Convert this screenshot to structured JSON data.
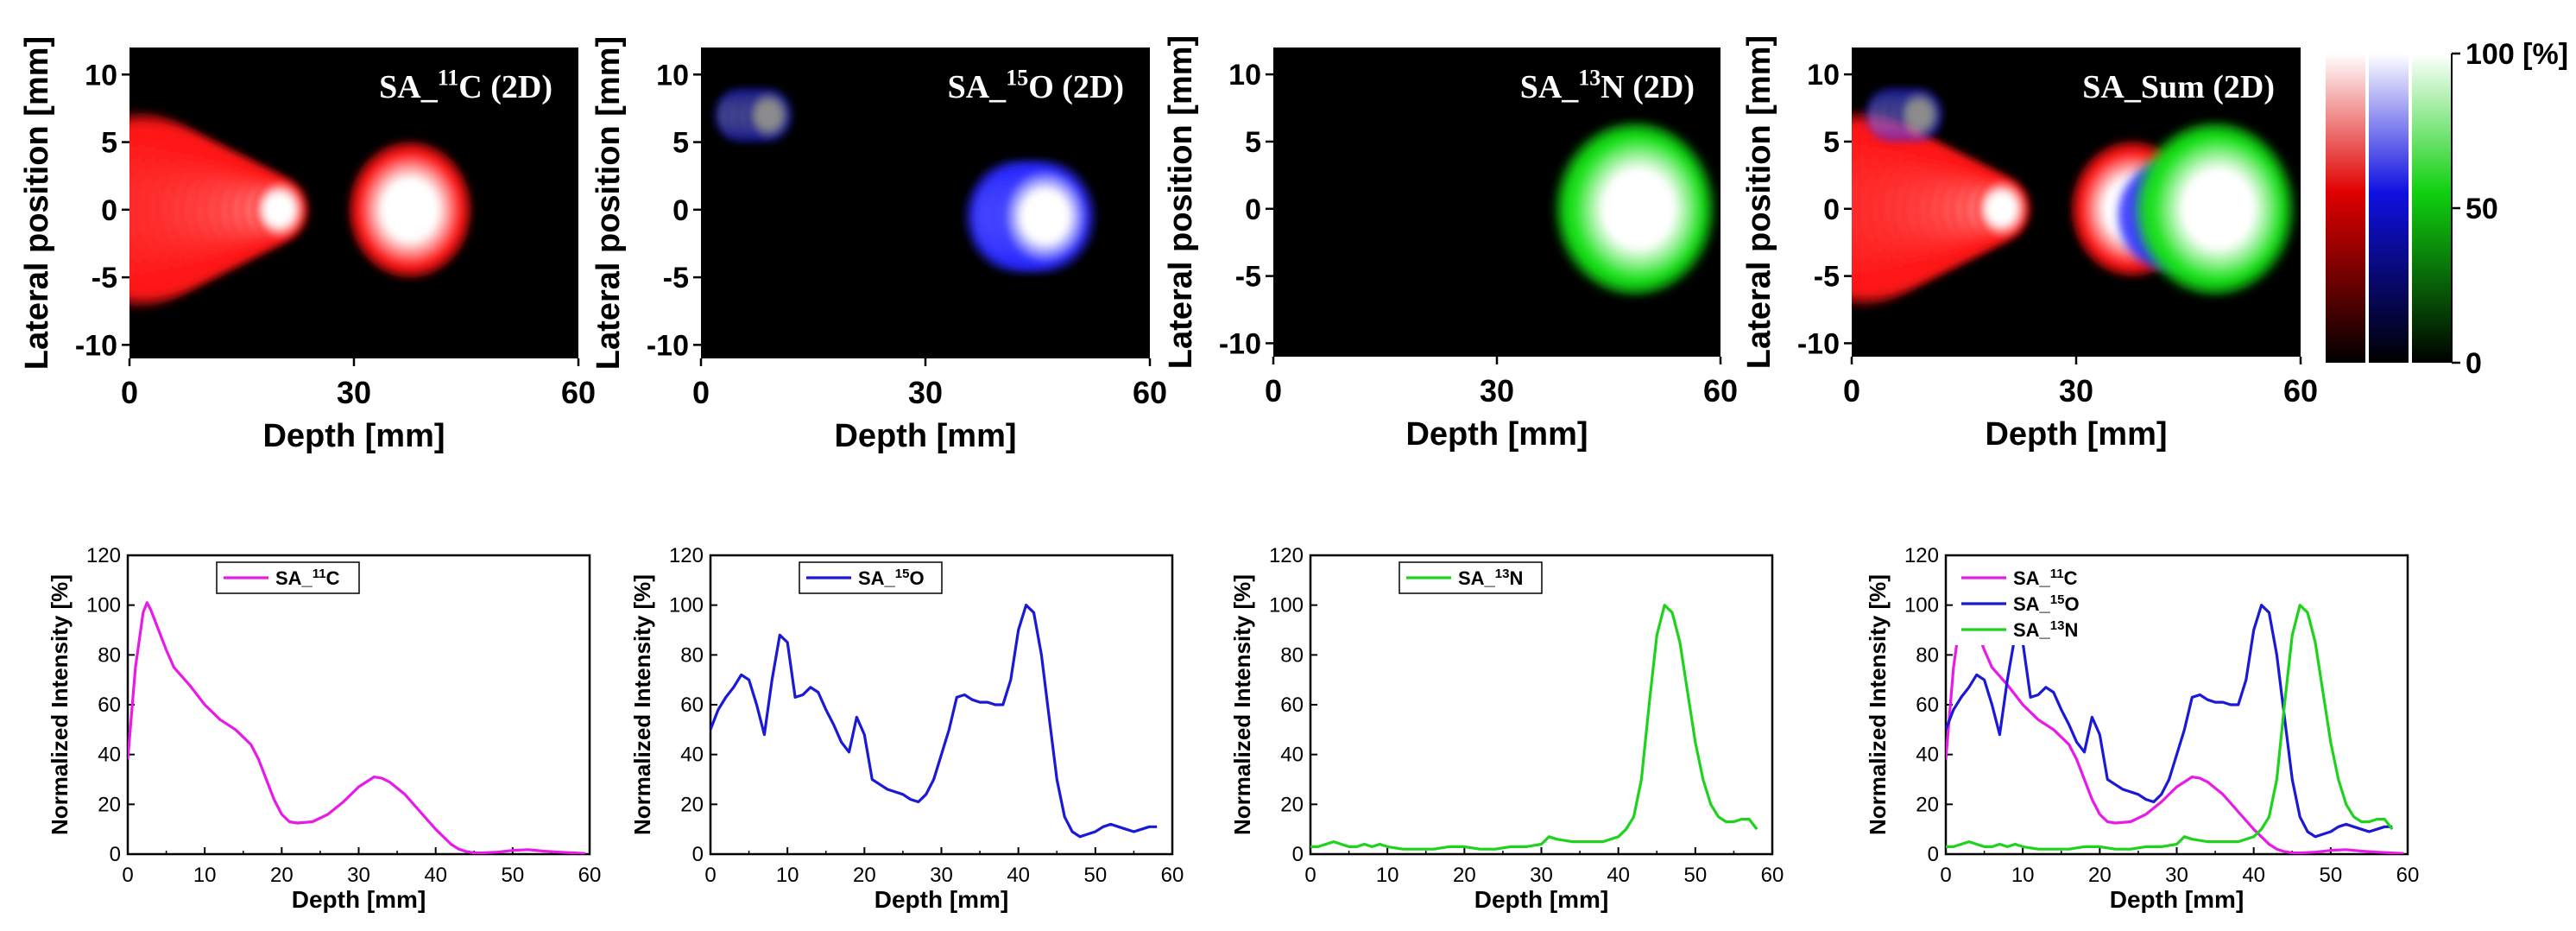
{
  "figure": {
    "colorbar": {
      "labels": [
        "100 [%]",
        "50",
        "0"
      ],
      "channels": [
        {
          "name": "red",
          "color": "#e00000"
        },
        {
          "name": "blue",
          "color": "#1010e0"
        },
        {
          "name": "green",
          "color": "#10d010"
        }
      ]
    }
  },
  "chart_data": [
    {
      "type": "heatmap",
      "id": "map-c11",
      "title_prefix": "SA_",
      "title_sup": "11",
      "title_suffix": "C (2D)",
      "xlabel": "Depth [mm]",
      "ylabel": "Lateral position [mm]",
      "xlim": [
        0,
        60
      ],
      "ylim": [
        -11,
        12
      ],
      "xticks": [
        0,
        30,
        60
      ],
      "yticks": [
        10,
        5,
        0,
        -5,
        -10
      ],
      "color": "red",
      "blobs": [
        {
          "channel": "red",
          "x": [
            1,
            20
          ],
          "y": 0,
          "r_start": 5.2,
          "r_end": 1.8,
          "intensity": 1.0
        },
        {
          "channel": "red",
          "x": [
            37.5,
            37.5
          ],
          "y": 0,
          "r_start": 3.6,
          "r_end": 3.6,
          "intensity": 1.0
        }
      ]
    },
    {
      "type": "heatmap",
      "id": "map-o15",
      "title_prefix": "SA_",
      "title_sup": "15",
      "title_suffix": "O (2D)",
      "xlabel": "Depth [mm]",
      "ylabel": "Lateral position [mm]",
      "xlim": [
        0,
        60
      ],
      "ylim": [
        -11,
        12
      ],
      "xticks": [
        0,
        30,
        60
      ],
      "yticks": [
        10,
        5,
        0,
        -5,
        -10
      ],
      "color": "blue",
      "blobs": [
        {
          "channel": "blue",
          "x": [
            42,
            46
          ],
          "y": -0.5,
          "r_start": 3.0,
          "r_end": 3.0,
          "intensity": 1.0
        },
        {
          "channel": "blue",
          "x": [
            5,
            9
          ],
          "y": 7,
          "r_start": 1.5,
          "r_end": 1.5,
          "intensity": 0.55
        }
      ]
    },
    {
      "type": "heatmap",
      "id": "map-n13",
      "title_prefix": "SA_",
      "title_sup": "13",
      "title_suffix": "N (2D)",
      "xlabel": "Depth [mm]",
      "ylabel": "Lateral position [mm]",
      "xlim": [
        0,
        60
      ],
      "ylim": [
        -11,
        12
      ],
      "xticks": [
        0,
        30,
        60
      ],
      "yticks": [
        10,
        5,
        0,
        -5,
        -10
      ],
      "color": "green",
      "blobs": [
        {
          "channel": "green",
          "x": [
            48,
            49
          ],
          "y": 0,
          "r_start": 4.6,
          "r_end": 4.6,
          "intensity": 1.0
        }
      ]
    },
    {
      "type": "heatmap",
      "id": "map-sum",
      "title_prefix": "SA_Sum (2D)",
      "title_sup": "",
      "title_suffix": "",
      "xlabel": "Depth [mm]",
      "ylabel": "Lateral position [mm]",
      "xlim": [
        0,
        60
      ],
      "ylim": [
        -11,
        12
      ],
      "xticks": [
        0,
        30,
        60
      ],
      "yticks": [
        10,
        5,
        0,
        -5,
        -10
      ],
      "color": "mixed",
      "blobs": [
        {
          "channel": "red",
          "x": [
            1,
            20
          ],
          "y": 0,
          "r_start": 5.2,
          "r_end": 1.8,
          "intensity": 1.0
        },
        {
          "channel": "red",
          "x": [
            37.5,
            37.5
          ],
          "y": 0,
          "r_start": 3.6,
          "r_end": 3.6,
          "intensity": 1.0
        },
        {
          "channel": "blue",
          "x": [
            42,
            46
          ],
          "y": -0.5,
          "r_start": 3.0,
          "r_end": 3.0,
          "intensity": 1.0
        },
        {
          "channel": "blue",
          "x": [
            5,
            9
          ],
          "y": 7,
          "r_start": 1.5,
          "r_end": 1.5,
          "intensity": 0.55
        },
        {
          "channel": "green",
          "x": [
            48,
            49
          ],
          "y": 0,
          "r_start": 4.6,
          "r_end": 4.6,
          "intensity": 1.0
        }
      ]
    },
    {
      "type": "line",
      "id": "prof-c11",
      "xlabel": "Depth [mm]",
      "ylabel": "Normalized Intensity [%]",
      "xlim": [
        0,
        60
      ],
      "ylim": [
        0,
        120
      ],
      "xticks": [
        0,
        10,
        20,
        30,
        40,
        50,
        60
      ],
      "yticks": [
        0,
        20,
        40,
        60,
        80,
        100,
        120
      ],
      "series": [
        {
          "key": "c11",
          "prefix": "SA_",
          "sup": "11",
          "suffix": "C",
          "color": "#e81ae8",
          "x": [
            0,
            1,
            2,
            2.5,
            3,
            4,
            5,
            6,
            8,
            10,
            12,
            14,
            16,
            17,
            18,
            19,
            20,
            21,
            22,
            24,
            26,
            28,
            30,
            32,
            33,
            34,
            36,
            38,
            40,
            42,
            43,
            44,
            45,
            46,
            48,
            50,
            52,
            54,
            56,
            58,
            59.5
          ],
          "y": [
            38,
            75,
            97,
            101,
            98,
            90,
            82,
            75,
            68,
            60,
            54,
            50,
            44,
            38,
            30,
            22,
            16,
            13,
            12.5,
            13,
            16,
            21,
            27,
            31,
            30.5,
            29,
            24,
            17,
            10,
            4,
            2,
            1,
            0.5,
            0.5,
            0.8,
            1.5,
            1.8,
            1.2,
            0.8,
            0.5,
            0.2
          ]
        }
      ]
    },
    {
      "type": "line",
      "id": "prof-o15",
      "xlabel": "Depth [mm]",
      "ylabel": "Normalized Intensity [%]",
      "xlim": [
        0,
        60
      ],
      "ylim": [
        0,
        120
      ],
      "xticks": [
        0,
        10,
        20,
        30,
        40,
        50,
        60
      ],
      "yticks": [
        0,
        20,
        40,
        60,
        80,
        100,
        120
      ],
      "series": [
        {
          "key": "o15",
          "prefix": "SA_",
          "sup": "15",
          "suffix": "O",
          "color": "#1a1ad6",
          "x": [
            0,
            1,
            2,
            3,
            4,
            5,
            6,
            7,
            8,
            9,
            10,
            11,
            12,
            13,
            14,
            15,
            16,
            17,
            18,
            19,
            20,
            21,
            22,
            23,
            24,
            25,
            26,
            27,
            28,
            29,
            30,
            31,
            32,
            33,
            34,
            35,
            36,
            37,
            38,
            39,
            40,
            41,
            42,
            43,
            44,
            45,
            46,
            47,
            48,
            49,
            50,
            51,
            52,
            53,
            54,
            55,
            56,
            57,
            58
          ],
          "y": [
            50,
            58,
            63,
            67,
            72,
            70,
            60,
            48,
            70,
            88,
            85,
            63,
            64,
            67,
            65,
            58,
            52,
            45,
            41,
            55,
            48,
            30,
            28,
            26,
            25,
            24,
            22,
            21,
            24,
            30,
            40,
            50,
            63,
            64,
            62,
            61,
            61,
            60,
            60,
            70,
            90,
            100,
            97,
            80,
            55,
            30,
            15,
            9,
            7,
            8,
            9,
            11,
            12,
            11,
            10,
            9,
            10,
            11,
            11
          ]
        }
      ]
    },
    {
      "type": "line",
      "id": "prof-n13",
      "xlabel": "Depth [mm]",
      "ylabel": "Normalized Intensity [%]",
      "xlim": [
        0,
        60
      ],
      "ylim": [
        0,
        120
      ],
      "xticks": [
        0,
        10,
        20,
        30,
        40,
        50,
        60
      ],
      "yticks": [
        0,
        20,
        40,
        60,
        80,
        100,
        120
      ],
      "series": [
        {
          "key": "n13",
          "prefix": "SA_",
          "sup": "13",
          "suffix": "N",
          "color": "#1ed21e",
          "x": [
            0,
            1,
            2,
            3,
            4,
            5,
            6,
            7,
            8,
            9,
            10,
            12,
            14,
            16,
            18,
            20,
            22,
            24,
            26,
            28,
            30,
            31,
            32,
            34,
            36,
            38,
            40,
            41,
            42,
            43,
            44,
            45,
            46,
            47,
            48,
            49,
            50,
            51,
            52,
            53,
            54,
            55,
            56,
            57,
            58
          ],
          "y": [
            3,
            3,
            4,
            5,
            4,
            3,
            3,
            4,
            3,
            4,
            3,
            2,
            2,
            2,
            3,
            3,
            2,
            2,
            3,
            3,
            4,
            7,
            6,
            5,
            5,
            5,
            7,
            10,
            15,
            30,
            60,
            88,
            100,
            97,
            85,
            65,
            45,
            30,
            20,
            15,
            13,
            13,
            14,
            14,
            10
          ]
        }
      ]
    },
    {
      "type": "line",
      "id": "prof-sum",
      "xlabel": "Depth [mm]",
      "ylabel": "Normalized Intensity [%]",
      "xlim": [
        0,
        60
      ],
      "ylim": [
        0,
        120
      ],
      "xticks": [
        0,
        10,
        20,
        30,
        40,
        50,
        60
      ],
      "yticks": [
        0,
        20,
        40,
        60,
        80,
        100,
        120
      ],
      "series_refs": [
        "c11",
        "o15",
        "n13"
      ],
      "legend": [
        {
          "prefix": "SA_",
          "sup": "11",
          "suffix": "C",
          "color": "#e81ae8"
        },
        {
          "prefix": "SA_",
          "sup": "15",
          "suffix": "O",
          "color": "#1a1ad6"
        },
        {
          "prefix": "SA_",
          "sup": "13",
          "suffix": "N",
          "color": "#1ed21e"
        }
      ]
    }
  ]
}
